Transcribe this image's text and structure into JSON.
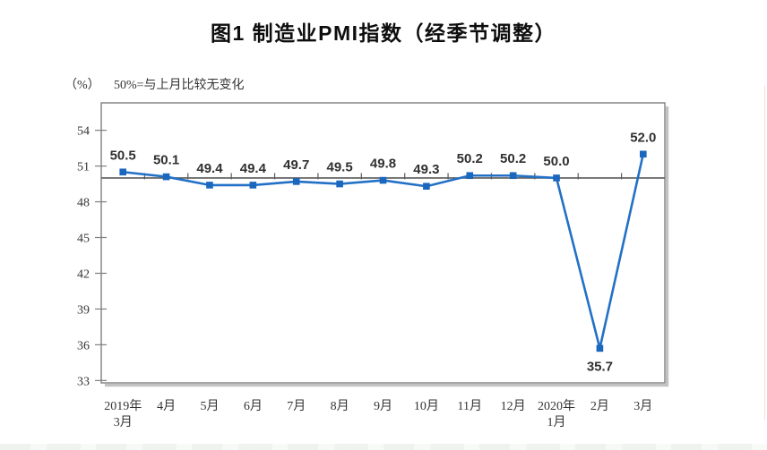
{
  "title": "图1  制造业PMI指数（经季节调整）",
  "note": {
    "unit": "（%）",
    "text": "50%=与上月比较无变化"
  },
  "chart_data": {
    "type": "line",
    "title": "图1 制造业PMI指数（经季节调整）",
    "x_categories": [
      [
        "2019年",
        "3月"
      ],
      [
        "4月"
      ],
      [
        "5月"
      ],
      [
        "6月"
      ],
      [
        "7月"
      ],
      [
        "8月"
      ],
      [
        "9月"
      ],
      [
        "10月"
      ],
      [
        "11月"
      ],
      [
        "12月"
      ],
      [
        "2020年",
        "1月"
      ],
      [
        "2月"
      ],
      [
        "3月"
      ]
    ],
    "values": [
      50.5,
      50.1,
      49.4,
      49.4,
      49.7,
      49.5,
      49.8,
      49.3,
      50.2,
      50.2,
      50.0,
      35.7,
      52.0
    ],
    "label_decimals": 1,
    "label_below_index": 11,
    "y_ticks": [
      33,
      36,
      39,
      42,
      45,
      48,
      51,
      54
    ],
    "ylim": [
      32.8,
      56.3
    ],
    "ylabel": "（%）",
    "reference_line": 50,
    "grid": false,
    "legend": "none",
    "marker_shape": "square",
    "colors": {
      "line": "#2271c6",
      "marker": "#1b67bd",
      "reference": "#595959",
      "frame": "#7f7f7f",
      "frame_shadow": "#c2c2c2",
      "axis_text": "#343434",
      "data_label": "#303030"
    }
  }
}
